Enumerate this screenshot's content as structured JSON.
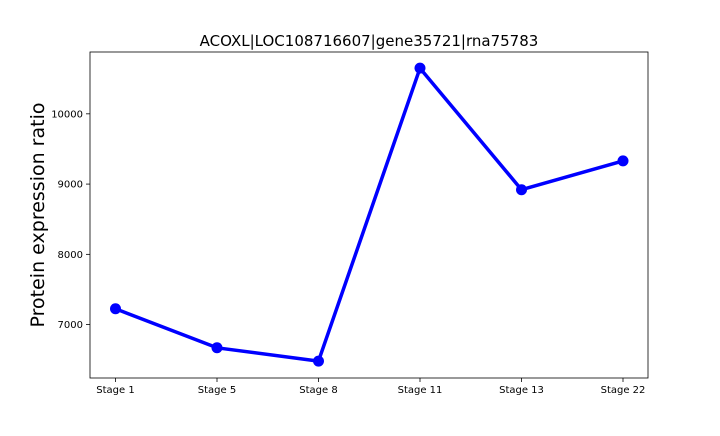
{
  "chart_data": {
    "type": "line",
    "title": "ACOXL|LOC108716607|gene35721|rna75783",
    "xlabel": "",
    "ylabel": "Protein expression ratio",
    "categories": [
      "Stage 1",
      "Stage 5",
      "Stage 8",
      "Stage 11",
      "Stage 13",
      "Stage 22"
    ],
    "series": [
      {
        "values": [
          7225,
          6670,
          6480,
          10650,
          8920,
          9330
        ],
        "color": "#0000ff"
      }
    ],
    "ylim": [
      6240,
      10880
    ],
    "yticks": [
      7000,
      8000,
      9000,
      10000
    ],
    "ytick_labels": [
      "7000",
      "8000",
      "9000",
      "10000"
    ],
    "grid": false,
    "legend": false
  }
}
